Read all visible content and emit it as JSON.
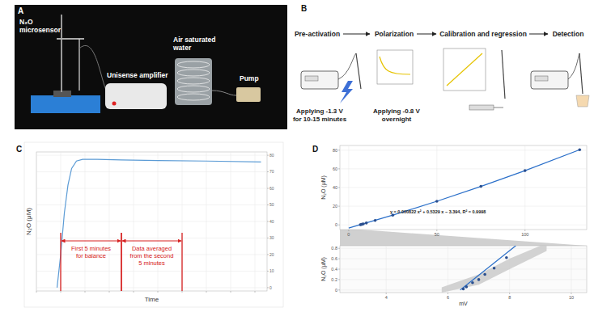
{
  "figure": {
    "panel_labels": [
      "A",
      "B",
      "C",
      "D"
    ],
    "photo": {
      "labels": [
        {
          "lines": [
            "N₂O",
            "microsensor"
          ]
        },
        {
          "lines": [
            "Unisense amplifier"
          ]
        },
        {
          "lines": [
            "Air saturated",
            "water"
          ]
        },
        {
          "lines": [
            "Pump"
          ]
        }
      ]
    },
    "workflow": {
      "steps": [
        "Pre-activation",
        "Polarization",
        "Calibration and regression",
        "Detection"
      ],
      "notes": [
        {
          "lines": [
            "Applying -1.3 V",
            "for 10-15 minutes"
          ]
        },
        {
          "lines": [
            "Applying -0.8 V",
            "overnight"
          ]
        }
      ]
    }
  },
  "chart_data": [
    {
      "type": "line",
      "xlabel": "Time",
      "ylabel": "N₂O (μM)",
      "xlim": [
        0,
        19
      ],
      "ylim": [
        -2,
        82
      ],
      "xticks": [
        0,
        2,
        4,
        6,
        8,
        10,
        12,
        14,
        16,
        18
      ],
      "yticks": [
        0,
        10,
        20,
        30,
        40,
        50,
        60,
        70,
        80
      ],
      "grid": true,
      "tick_labels": "y",
      "series": [
        {
          "color": "#5b9bd5",
          "x": [
            1.7,
            2.0,
            2.3,
            2.6,
            2.9,
            3.3,
            3.8,
            5,
            7,
            10,
            14,
            18.5
          ],
          "values": [
            0,
            20,
            45,
            62,
            72,
            76.5,
            77.5,
            77.5,
            77.2,
            76.8,
            76.5,
            76
          ]
        }
      ],
      "annotations": [
        {
          "lines": [
            "First 5 minutes",
            "for balance"
          ],
          "x": [
            2,
            7
          ],
          "color": "#d62020"
        },
        {
          "lines": [
            "Data averaged",
            "from the second",
            "5 minutes"
          ],
          "x": [
            7,
            12
          ],
          "color": "#d62020"
        }
      ]
    },
    {
      "type": "scatter",
      "ylabel": "N₂O (μM)",
      "xlim": [
        -5,
        135
      ],
      "ylim": [
        -5,
        85
      ],
      "xticks": [
        0,
        50,
        100
      ],
      "yticks": [
        0,
        20,
        40,
        60,
        80
      ],
      "grid": true,
      "series": [
        {
          "type": "line",
          "color": "#2a6fc9",
          "x": [
            0,
            25,
            50,
            75,
            100,
            131
          ],
          "values": [
            -3.39,
            10.44,
            25.3,
            41.2,
            58.1,
            80.5
          ]
        },
        {
          "type": "scatter",
          "color": "#2a4f8f",
          "marker": "circle",
          "x": [
            6.6,
            7.0,
            7.6,
            8.3,
            10,
            15,
            25,
            50,
            75,
            100,
            131
          ],
          "values": [
            0.16,
            0.37,
            0.69,
            1.08,
            2.02,
            4.78,
            10.44,
            25.3,
            41.2,
            58.1,
            80.5
          ]
        }
      ],
      "annotations": [
        {
          "text": "y = 0.000822 x² + 0.5329 x − 3.394, R² = 0.9998"
        }
      ]
    },
    {
      "type": "scatter",
      "xlabel": "mV",
      "ylabel": "N₂O (μM)",
      "xlim": [
        2.5,
        10.5
      ],
      "ylim": [
        -0.05,
        0.85
      ],
      "xticks": [
        4,
        6,
        8,
        10
      ],
      "yticks": [
        0,
        0.2,
        0.4,
        0.6,
        0.8
      ],
      "grid": true,
      "series": [
        {
          "type": "band",
          "color": "#c8c8c8",
          "x": [
            5.8,
            7.0,
            8.0,
            9.2
          ],
          "lower": [
            -0.05,
            0.1,
            0.4,
            0.75
          ],
          "upper": [
            0.05,
            0.3,
            0.6,
            0.9
          ]
        },
        {
          "type": "line",
          "color": "#2a6fc9",
          "x": [
            6.4,
            8.2
          ],
          "values": [
            0.0,
            0.85
          ]
        },
        {
          "type": "scatter",
          "color": "#2a4f8f",
          "marker": "circle",
          "x": [
            6.5,
            6.6,
            6.8,
            7.0,
            7.2,
            7.5,
            7.9
          ],
          "values": [
            0.02,
            0.06,
            0.14,
            0.2,
            0.3,
            0.42,
            0.62
          ]
        }
      ]
    }
  ]
}
